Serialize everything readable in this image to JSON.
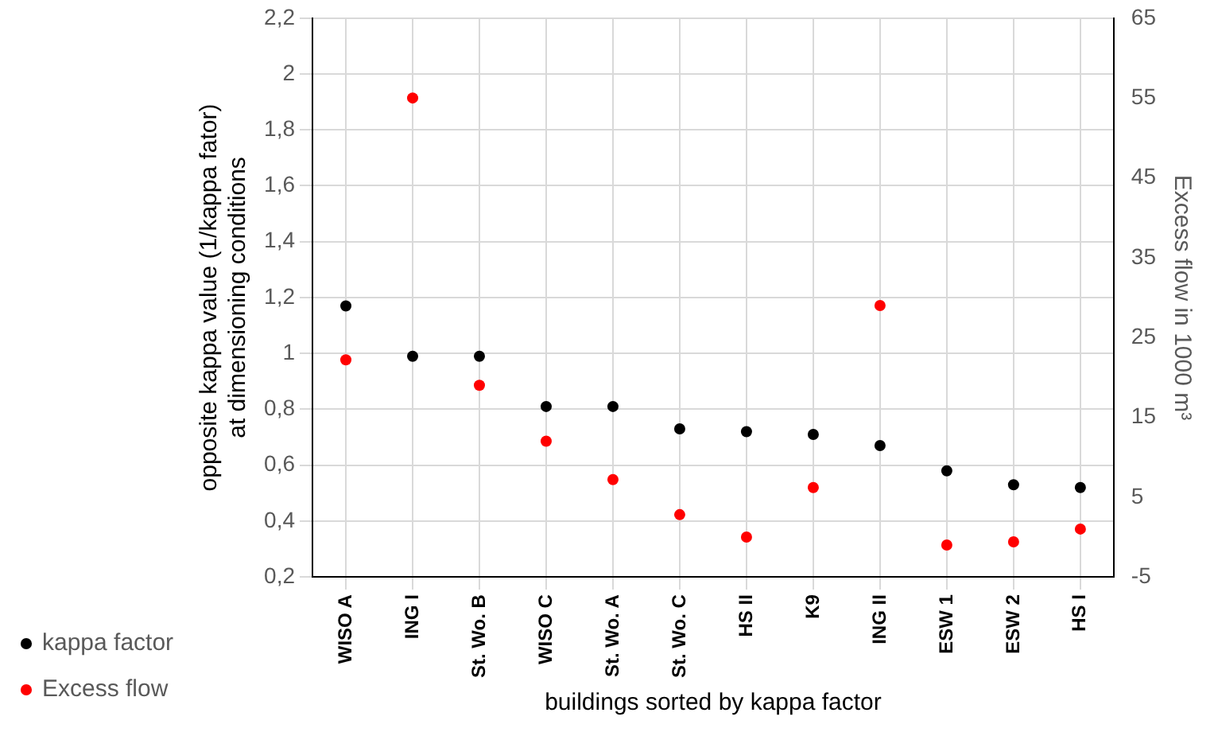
{
  "chart_data": {
    "type": "scatter",
    "xlabel": "buildings sorted by kappa factor",
    "ylabel": "opposite kappa value (1/kappa fator)\nat dimensioning conditions",
    "y2label": "Excess flow in 1000 m³",
    "categories": [
      "WISO A",
      "ING I",
      "St. Wo. B",
      "WISO C",
      "St. Wo. A",
      "St. Wo. C",
      "HS II",
      "K9",
      "ING II",
      "ESW 1",
      "ESW 2",
      "HS I"
    ],
    "series": [
      {
        "name": "kappa factor",
        "color": "#000000",
        "values": [
          1.17,
          0.99,
          0.99,
          0.81,
          0.81,
          0.73,
          0.72,
          0.71,
          0.67,
          0.58,
          0.53,
          0.52
        ]
      },
      {
        "name": "Excess flow",
        "color": "#ff0000",
        "axis": "y2",
        "values": [
          22.2,
          55,
          19,
          12,
          7.2,
          2.8,
          0,
          6.2,
          29,
          -1,
          -0.6,
          1
        ]
      }
    ],
    "ylim": [
      0.2,
      2.2
    ],
    "yticks": [
      {
        "value": 0.2,
        "label": "0,2"
      },
      {
        "value": 0.4,
        "label": "0,4"
      },
      {
        "value": 0.6,
        "label": "0,6"
      },
      {
        "value": 0.8,
        "label": "0,8"
      },
      {
        "value": 1,
        "label": "1"
      },
      {
        "value": 1.2,
        "label": "1,2"
      },
      {
        "value": 1.4,
        "label": "1,4"
      },
      {
        "value": 1.6,
        "label": "1,6"
      },
      {
        "value": 1.8,
        "label": "1,8"
      },
      {
        "value": 2,
        "label": "2"
      },
      {
        "value": 2.2,
        "label": "2,2"
      }
    ],
    "y2lim": [
      -5,
      65
    ],
    "y2ticks": [
      -5,
      5,
      15,
      25,
      35,
      45,
      55,
      65
    ],
    "grid": true,
    "legend": "bottom left",
    "marker": "circle"
  }
}
